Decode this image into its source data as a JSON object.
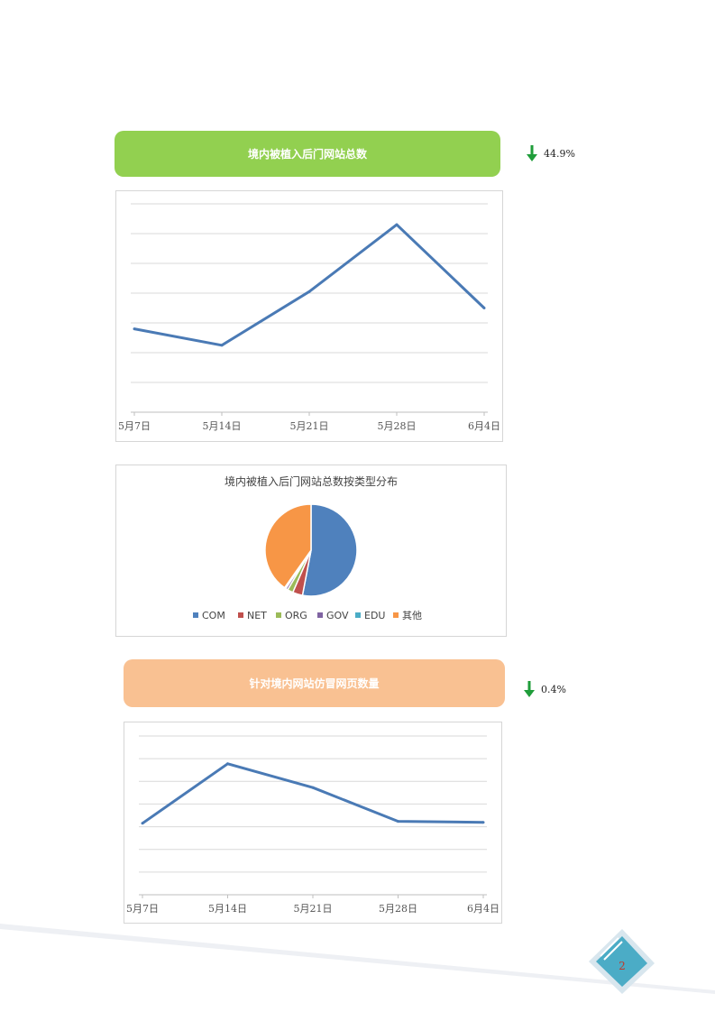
{
  "section1": {
    "title": "境内被植入后门网站总数",
    "change": "44.9%",
    "change_direction": "down"
  },
  "section2": {
    "title": "针对境内网站仿冒网页数量",
    "change": "0.4%",
    "change_direction": "down"
  },
  "page_number": "2",
  "colors": {
    "green_banner": "#92d050",
    "orange_banner": "#f9c192",
    "line": "#4a7ab5",
    "arrow": "#1f9d3a"
  },
  "chart_data": [
    {
      "type": "line",
      "categories": [
        "5月7日",
        "5月14日",
        "5月21日",
        "5月28日",
        "6月4日"
      ],
      "values": [
        28,
        22.5,
        40.5,
        63,
        35
      ],
      "ylim": [
        0,
        70
      ],
      "grid": true,
      "color": "#4a7ab5"
    },
    {
      "type": "pie",
      "title": "境内被植入后门网站总数按类型分布",
      "labels": [
        "COM",
        "NET",
        "ORG",
        "GOV",
        "EDU",
        "其他"
      ],
      "values": [
        53,
        3.5,
        2,
        0.8,
        0.5,
        40.2
      ],
      "colors": [
        "#4f81bd",
        "#c0504d",
        "#9bbb59",
        "#8064a2",
        "#4bacc6",
        "#f79646"
      ],
      "legend": "bottom"
    },
    {
      "type": "line",
      "categories": [
        "5月7日",
        "5月14日",
        "5月21日",
        "5月28日",
        "6月4日"
      ],
      "values": [
        3.6,
        6.6,
        5.4,
        3.7,
        3.65
      ],
      "ylim": [
        0,
        8
      ],
      "grid": true,
      "color": "#4a7ab5"
    }
  ]
}
